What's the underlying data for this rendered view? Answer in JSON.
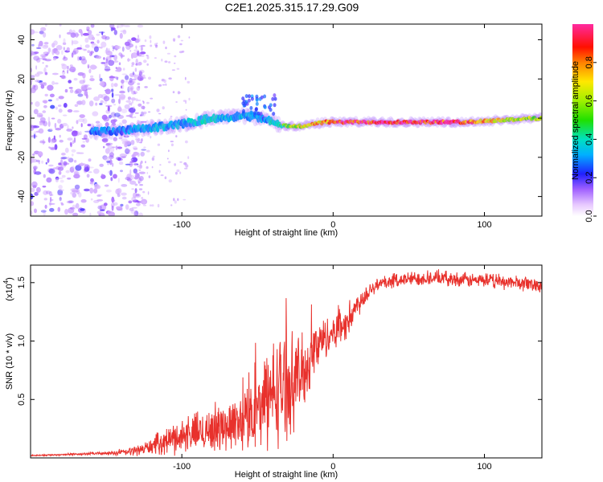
{
  "title": "C2E1.2025.315.17.29.G09",
  "colors": {
    "line": "#e8312c",
    "spectrogram_low": "#8a2be2",
    "spectrogram_high": "#ff2a00",
    "axis": "#000000"
  },
  "chart_data": [
    {
      "type": "heatmap",
      "xlabel": "Height of straight line (km)",
      "ylabel": "Frequency (Hz)",
      "xlim": [
        -200,
        138
      ],
      "ylim": [
        -50,
        48
      ],
      "xticks": [
        -100,
        0,
        100
      ],
      "yticks": [
        -40,
        -20,
        0,
        20,
        40
      ],
      "ridge": {
        "x": [
          -155,
          -140,
          -120,
          -100,
          -80,
          -60,
          -45,
          -35,
          -20,
          -5,
          10,
          30,
          60,
          90,
          110,
          138
        ],
        "y": [
          -7,
          -6.5,
          -5,
          -3,
          0,
          1,
          0,
          -4,
          -4,
          -2,
          -2,
          -2,
          -2,
          -2,
          -1,
          0
        ],
        "amplitude": [
          0.3,
          0.3,
          0.35,
          0.35,
          0.4,
          0.35,
          0.3,
          0.5,
          0.7,
          0.8,
          0.95,
          0.98,
          0.98,
          0.9,
          0.7,
          0.6
        ]
      },
      "noise_region_x": [
        -200,
        -130
      ],
      "colorbar": {
        "label": "Normalized spectral amplitude",
        "range": [
          0,
          1
        ],
        "ticks": [
          "0.0",
          "0.2",
          "0.4",
          "0.6",
          "0.8"
        ]
      }
    },
    {
      "type": "line",
      "xlabel": "Height of straight line (km)",
      "ylabel": "SNR (10 * v/v)",
      "scale_label": "(x10",
      "scale_exponent": "4",
      "xlim": [
        -200,
        138
      ],
      "ylim": [
        0,
        1.65
      ],
      "xticks": [
        -100,
        0,
        100
      ],
      "yticks": [
        "0.5",
        "1.0",
        "1.5"
      ],
      "ytick_values": [
        0.5,
        1.0,
        1.5
      ],
      "series": [
        {
          "name": "SNR",
          "x": [
            -200,
            -150,
            -135,
            -125,
            -120,
            -110,
            -100,
            -90,
            -80,
            -70,
            -60,
            -50,
            -45,
            -40,
            -35,
            -30,
            -25,
            -20,
            -15,
            -10,
            -5,
            0,
            5,
            10,
            15,
            20,
            25,
            30,
            35,
            40,
            50,
            60,
            70,
            80,
            90,
            100,
            110,
            120,
            138
          ],
          "y": [
            0.02,
            0.04,
            0.05,
            0.08,
            0.1,
            0.15,
            0.19,
            0.22,
            0.25,
            0.28,
            0.32,
            0.4,
            0.48,
            0.55,
            0.6,
            0.64,
            0.68,
            0.72,
            0.85,
            0.97,
            1.03,
            1.08,
            1.12,
            1.18,
            1.28,
            1.38,
            1.45,
            1.49,
            1.5,
            1.52,
            1.53,
            1.54,
            1.54,
            1.53,
            1.52,
            1.52,
            1.51,
            1.5,
            1.48
          ],
          "noise": [
            0.004,
            0.01,
            0.03,
            0.04,
            0.06,
            0.09,
            0.12,
            0.14,
            0.16,
            0.17,
            0.2,
            0.26,
            0.32,
            0.36,
            0.38,
            0.36,
            0.3,
            0.26,
            0.22,
            0.18,
            0.14,
            0.12,
            0.12,
            0.12,
            0.1,
            0.08,
            0.06,
            0.05,
            0.05,
            0.05,
            0.05,
            0.05,
            0.05,
            0.05,
            0.05,
            0.05,
            0.05,
            0.05,
            0.05
          ],
          "max": 1.62
        }
      ]
    }
  ]
}
